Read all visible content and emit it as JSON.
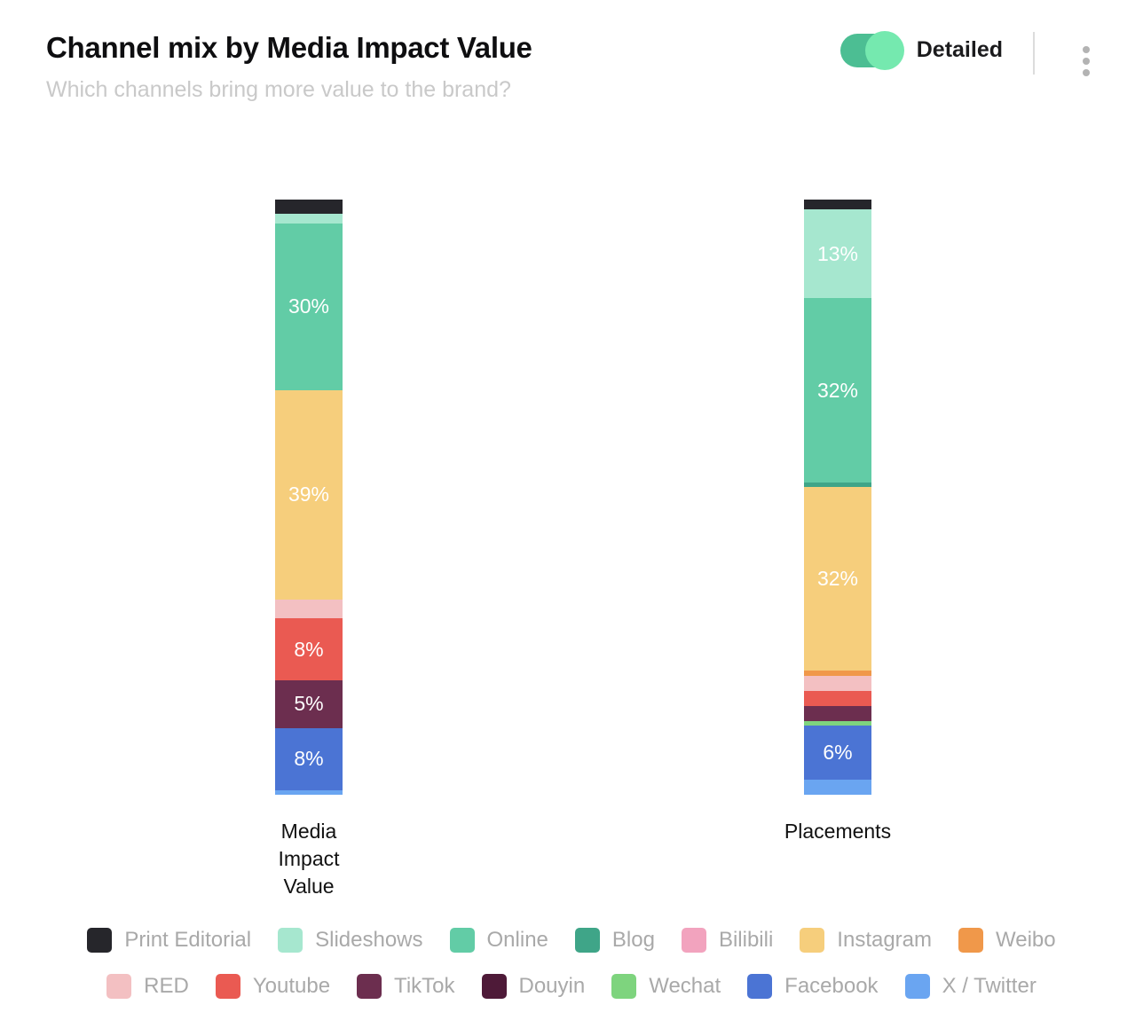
{
  "header": {
    "title": "Channel mix by Media Impact Value",
    "subtitle": "Which channels bring more value to the brand?",
    "toggle": {
      "label": "Detailed",
      "state": "on",
      "track_color": "#4cbe93",
      "knob_color": "#75e9af"
    },
    "menu_icon": "kebab-vertical"
  },
  "chart_data": {
    "type": "bar",
    "stacked": true,
    "orientation": "vertical",
    "unit": "%",
    "ylim": [
      0,
      100
    ],
    "grid": false,
    "legend_position": "bottom",
    "legend_row_split": 7,
    "label_threshold_pct": 5,
    "label_color": "#ffffff",
    "categories": [
      "Media Impact Value",
      "Placements"
    ],
    "series": [
      {
        "name": "Print Editorial",
        "color": "#26262b",
        "values": [
          3,
          2
        ]
      },
      {
        "name": "Slideshows",
        "color": "#a6e7cf",
        "values": [
          2,
          13
        ]
      },
      {
        "name": "Online",
        "color": "#62cca6",
        "values": [
          30,
          32
        ]
      },
      {
        "name": "Blog",
        "color": "#3fa588",
        "values": [
          0,
          1
        ]
      },
      {
        "name": "Bilibili",
        "color": "#f2a3be",
        "values": [
          0,
          0
        ]
      },
      {
        "name": "Instagram",
        "color": "#f6ce7c",
        "values": [
          39,
          32
        ]
      },
      {
        "name": "Weibo",
        "color": "#f0984a",
        "values": [
          0,
          1
        ]
      },
      {
        "name": "RED",
        "color": "#f3c0c2",
        "values": [
          4,
          3
        ]
      },
      {
        "name": "Youtube",
        "color": "#ea5a52",
        "values": [
          8,
          3
        ]
      },
      {
        "name": "TikTok",
        "color": "#6c2e4f",
        "values": [
          5,
          3
        ]
      },
      {
        "name": "Douyin",
        "color": "#4e1a38",
        "values": [
          0,
          0
        ]
      },
      {
        "name": "Wechat",
        "color": "#7ed47e",
        "values": [
          0,
          1
        ]
      },
      {
        "name": "Facebook",
        "color": "#4b74d4",
        "values": [
          8,
          6
        ]
      },
      {
        "name": "X / Twitter",
        "color": "#6aa5f1",
        "values": [
          1,
          3
        ]
      }
    ]
  }
}
